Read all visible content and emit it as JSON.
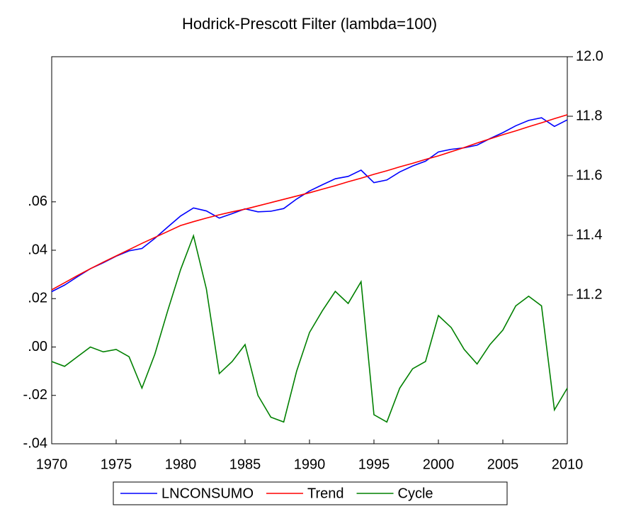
{
  "chart_data": {
    "type": "line",
    "title": "Hodrick-Prescott Filter (lambda=100)",
    "x": [
      1970,
      1971,
      1972,
      1973,
      1974,
      1975,
      1976,
      1977,
      1978,
      1979,
      1980,
      1981,
      1982,
      1983,
      1984,
      1985,
      1986,
      1987,
      1988,
      1989,
      1990,
      1991,
      1992,
      1993,
      1994,
      1995,
      1996,
      1997,
      1998,
      1999,
      2000,
      2001,
      2002,
      2003,
      2004,
      2005,
      2006,
      2007,
      2008,
      2009,
      2010
    ],
    "series": [
      {
        "name": "LNCONSUMO",
        "color": "#0000ff",
        "axis": "y2",
        "values": [
          11.211,
          11.233,
          11.261,
          11.288,
          11.308,
          11.33,
          11.348,
          11.356,
          11.39,
          11.428,
          11.465,
          11.492,
          11.482,
          11.458,
          11.473,
          11.489,
          11.479,
          11.481,
          11.49,
          11.522,
          11.549,
          11.57,
          11.59,
          11.598,
          11.619,
          11.577,
          11.586,
          11.613,
          11.633,
          11.649,
          11.68,
          11.689,
          11.694,
          11.703,
          11.725,
          11.745,
          11.768,
          11.786,
          11.795,
          11.766,
          11.788
        ]
      },
      {
        "name": "Trend",
        "color": "#ff0000",
        "axis": "y2",
        "values": [
          11.217,
          11.241,
          11.265,
          11.288,
          11.31,
          11.331,
          11.352,
          11.373,
          11.393,
          11.413,
          11.433,
          11.446,
          11.458,
          11.469,
          11.479,
          11.488,
          11.499,
          11.51,
          11.521,
          11.532,
          11.543,
          11.555,
          11.567,
          11.58,
          11.592,
          11.605,
          11.617,
          11.63,
          11.642,
          11.655,
          11.667,
          11.681,
          11.695,
          11.71,
          11.724,
          11.738,
          11.751,
          11.765,
          11.778,
          11.792,
          11.805
        ]
      },
      {
        "name": "Cycle",
        "color": "#008000",
        "values": [
          -0.006,
          -0.008,
          -0.004,
          0.0,
          -0.002,
          -0.001,
          -0.004,
          -0.017,
          -0.003,
          0.015,
          0.032,
          0.046,
          0.024,
          -0.011,
          -0.006,
          0.001,
          -0.02,
          -0.029,
          -0.031,
          -0.01,
          0.006,
          0.015,
          0.023,
          0.018,
          0.027,
          -0.028,
          -0.031,
          -0.017,
          -0.009,
          -0.006,
          0.013,
          0.008,
          -0.001,
          -0.007,
          0.001,
          0.007,
          0.017,
          0.021,
          0.017,
          -0.026,
          -0.017
        ]
      }
    ],
    "xlim": [
      1970,
      2010
    ],
    "xticks": [
      1970,
      1975,
      1980,
      1985,
      1990,
      1995,
      2000,
      2005,
      2010
    ],
    "ylim": [
      -0.04,
      0.12
    ],
    "yticks": [
      {
        "value": 0.06,
        "label": ".06"
      },
      {
        "value": 0.04,
        "label": ".04"
      },
      {
        "value": 0.02,
        "label": ".02"
      },
      {
        "value": 0,
        "label": ".00"
      },
      {
        "value": -0.02,
        "label": "-.02"
      },
      {
        "value": -0.04,
        "label": "-.04"
      }
    ],
    "y2lim": [
      10.7,
      12.0
    ],
    "y2ticks": [
      {
        "value": 12,
        "label": "12.0"
      },
      11.8,
      11.6,
      11.4,
      11.2
    ],
    "legend": "bottom"
  }
}
